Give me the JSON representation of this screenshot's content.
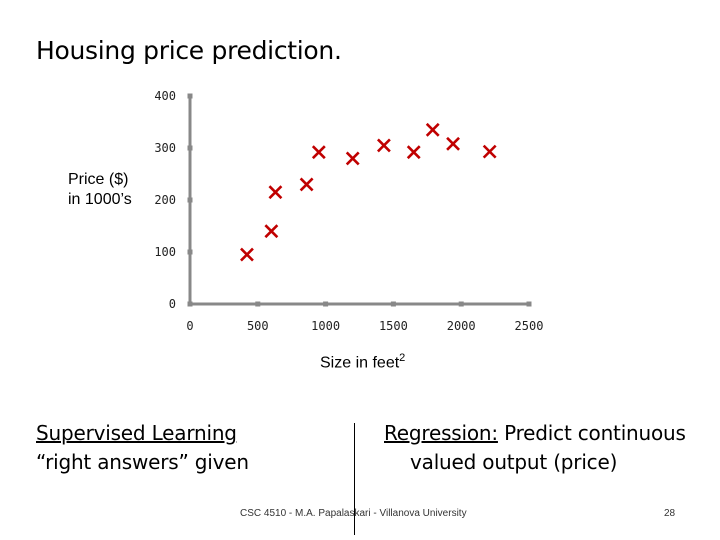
{
  "slide": {
    "title": "Housing price prediction.",
    "left_line1": "Supervised Learning",
    "left_line2": "“right answers” given",
    "right_label": "Regression:",
    "right_rest": " Predict continuous",
    "right_line2": "valued output (price)",
    "footer": "CSC 4510 - M.A. Papalaskari - Villanova University",
    "page_number": "28"
  },
  "colors": {
    "marker": "#c00000",
    "axis": "#888888"
  },
  "chart_data": {
    "type": "scatter",
    "title": "",
    "xlabel": "Size in feet",
    "xlabel_sup": "2",
    "ylabel_line1": "Price ($)",
    "ylabel_line2": "in 1000’s",
    "xlim": [
      0,
      2500
    ],
    "ylim": [
      0,
      400
    ],
    "xticks": [
      0,
      500,
      1000,
      1500,
      2000,
      2500
    ],
    "yticks": [
      0,
      100,
      200,
      300,
      400
    ],
    "grid": false,
    "marker": "x",
    "points": [
      {
        "x": 420,
        "y": 95
      },
      {
        "x": 600,
        "y": 140
      },
      {
        "x": 630,
        "y": 215
      },
      {
        "x": 860,
        "y": 230
      },
      {
        "x": 950,
        "y": 292
      },
      {
        "x": 1200,
        "y": 280
      },
      {
        "x": 1430,
        "y": 305
      },
      {
        "x": 1650,
        "y": 292
      },
      {
        "x": 1790,
        "y": 335
      },
      {
        "x": 1940,
        "y": 308
      },
      {
        "x": 2210,
        "y": 293
      }
    ]
  }
}
